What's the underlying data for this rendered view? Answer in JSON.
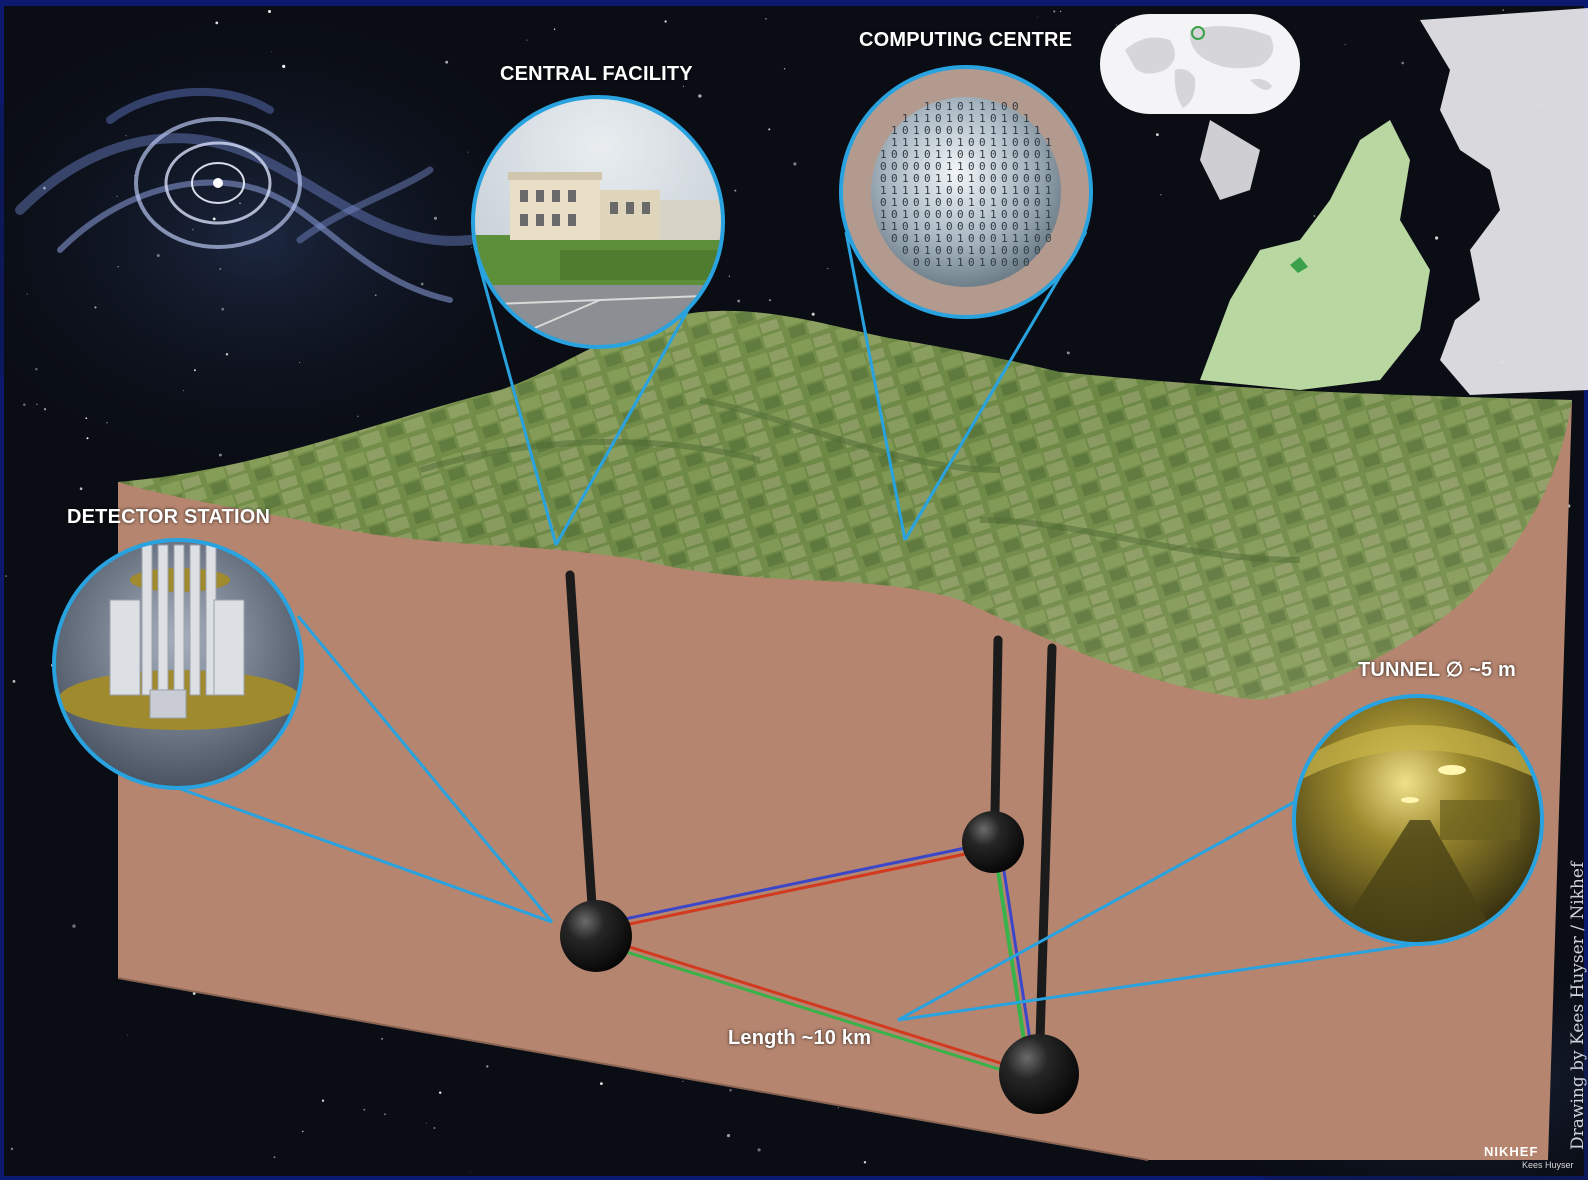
{
  "labels": {
    "central_facility": "CENTRAL FACILITY",
    "computing_centre": "COMPUTING CENTRE",
    "detector_station": "DETECTOR STATION",
    "tunnel": "TUNNEL ∅ ~5 m",
    "length": "Length ~10 km"
  },
  "credit": "Drawing by Kees Huyser / Nikhef",
  "logo": {
    "mark": "NIKHEF",
    "sub": "Kees Huyser"
  },
  "colors": {
    "frame_border": "#0b1a6e",
    "space_background": "#0a0d14",
    "earth_block_side": "#b5856f",
    "terrain_green": "#6f8a45",
    "callout_line": "#29a3e0",
    "sphere": "#141414",
    "laser_red": "#d23a1f",
    "laser_blue": "#3b47c8",
    "laser_green": "#38b34a",
    "europe_land": "#e4e4e8",
    "europe_highlight": "#b9d7a0"
  },
  "icons": {
    "black_hole": "black-hole-merger-icon",
    "world_map": "world-map-icon",
    "europe_map": "europe-map-icon"
  }
}
